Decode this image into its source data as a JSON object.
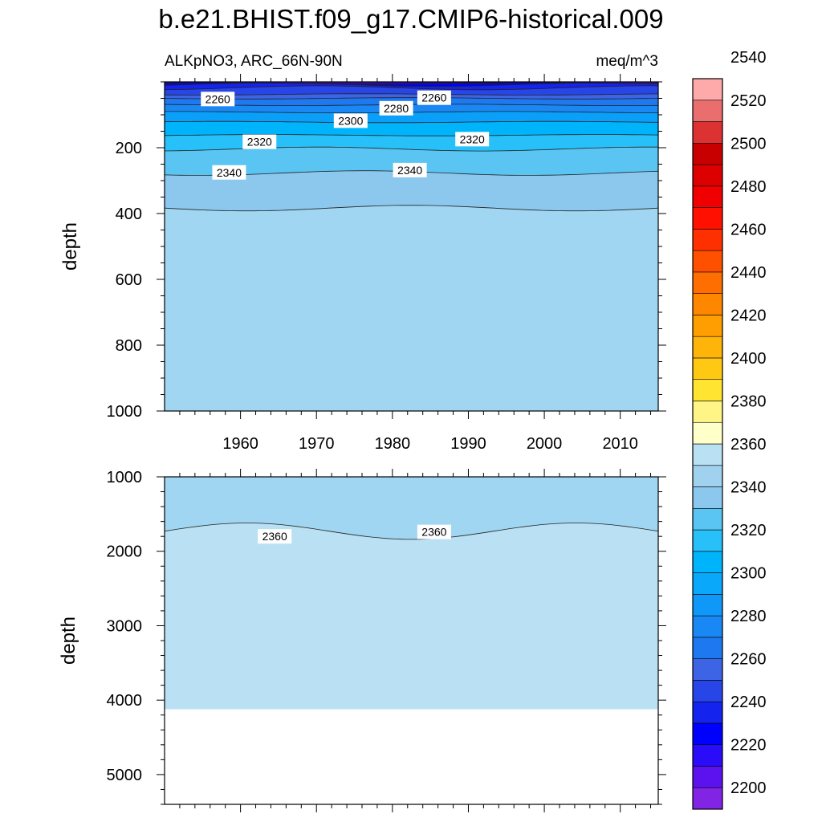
{
  "title": "b.e21.BHIST.f09_g17.CMIP6-historical.009",
  "subtitle_left": "ALKpNO3, ARC_66N-90N",
  "subtitle_right": "meq/m^3",
  "chart_data": [
    {
      "type": "heatmap",
      "name": "upper-panel",
      "xlabel": "",
      "ylabel": "depth",
      "xlim": [
        1950,
        2015
      ],
      "ylim": [
        1000,
        0
      ],
      "y_reversed": true,
      "x_ticks": [
        1960,
        1970,
        1980,
        1990,
        2000,
        2010
      ],
      "y_ticks": [
        200,
        400,
        600,
        800,
        1000
      ],
      "background_color": "#a0d6f2",
      "bands": [
        {
          "level": 2220,
          "color": "#5c12ef",
          "x": [
            1950,
            2015
          ],
          "depth": [
            2,
            4
          ]
        },
        {
          "level": 2230,
          "color": "#1e00f5",
          "x": [
            1950,
            2015
          ],
          "depth": [
            2,
            8
          ]
        },
        {
          "level": 2240,
          "color": "#0000ff",
          "x": [
            1950,
            2015
          ],
          "depth": [
            3,
            14
          ]
        },
        {
          "level": 2250,
          "color": "#1424ee",
          "x": [
            1950,
            2015
          ],
          "depth": [
            12,
            24
          ]
        },
        {
          "level": 2260,
          "color": "#2846e8",
          "x": [
            1950,
            2015
          ],
          "depth": [
            36,
            40
          ]
        },
        {
          "level": 2270,
          "color": "#3c64e4",
          "x": [
            1950,
            2015
          ],
          "depth": [
            48,
            52
          ]
        },
        {
          "level": 2280,
          "color": "#1e78f0",
          "x": [
            1950,
            2015
          ],
          "depth": [
            68,
            72
          ]
        },
        {
          "level": 2290,
          "color": "#1a88f4",
          "x": [
            1950,
            2015
          ],
          "depth": [
            90,
            94
          ]
        },
        {
          "level": 2300,
          "color": "#0aa0fa",
          "x": [
            1950,
            2015
          ],
          "depth": [
            120,
            124
          ]
        },
        {
          "level": 2310,
          "color": "#00b4fb",
          "x": [
            1950,
            2015
          ],
          "depth": [
            160,
            164
          ]
        },
        {
          "level": 2320,
          "color": "#28c0f8",
          "x": [
            1950,
            2015
          ],
          "depth": [
            198,
            210
          ]
        },
        {
          "level": 2330,
          "color": "#5ac5f3",
          "x": [
            1950,
            2015
          ],
          "depth": [
            270,
            284
          ]
        },
        {
          "level": 2340,
          "color": "#8cc8ee",
          "x": [
            1950,
            2015
          ],
          "depth": [
            375,
            392
          ]
        }
      ],
      "contour_labels": [
        {
          "text": "2260",
          "x": 1957,
          "depth": 52
        },
        {
          "text": "2260",
          "x": 1985.5,
          "depth": 48
        },
        {
          "text": "2280",
          "x": 1980.5,
          "depth": 80
        },
        {
          "text": "2300",
          "x": 1974.5,
          "depth": 118
        },
        {
          "text": "2320",
          "x": 1962.5,
          "depth": 182
        },
        {
          "text": "2320",
          "x": 1990.5,
          "depth": 174
        },
        {
          "text": "2340",
          "x": 1958.5,
          "depth": 275
        },
        {
          "text": "2340",
          "x": 1982.3,
          "depth": 268
        }
      ]
    },
    {
      "type": "heatmap",
      "name": "lower-panel",
      "xlabel": "",
      "ylabel": "depth",
      "xlim": [
        1950,
        2015
      ],
      "ylim": [
        5400,
        1000
      ],
      "y_reversed": true,
      "x_ticks": [
        1960,
        1970,
        1980,
        1990,
        2000,
        2010
      ],
      "y_ticks": [
        1000,
        2000,
        3000,
        4000,
        5000
      ],
      "background_color": "#a0d6f2",
      "bands": [
        {
          "level": 2360,
          "color": "#b9e1f3",
          "x": [
            1950,
            2015
          ],
          "depth": [
            1620,
            1840
          ]
        }
      ],
      "bottom_depth": 4120,
      "contour_labels": [
        {
          "text": "2360",
          "x": 1964.5,
          "depth": 1800
        },
        {
          "text": "2360",
          "x": 1985.5,
          "depth": 1740
        }
      ]
    }
  ],
  "colorbar": {
    "labels": [
      "2200",
      "2220",
      "2240",
      "2260",
      "2280",
      "2300",
      "2320",
      "2340",
      "2360",
      "2380",
      "2400",
      "2420",
      "2440",
      "2460",
      "2480",
      "2500",
      "2520",
      "2540"
    ],
    "colors": [
      "#8224e3",
      "#5c12ef",
      "#2a0cf8",
      "#0000ff",
      "#1424ee",
      "#2846e8",
      "#3c64e4",
      "#1e78f0",
      "#1a88f4",
      "#1098f8",
      "#0aa8fa",
      "#00b4fb",
      "#28c0f8",
      "#5ac5f3",
      "#8cc8ee",
      "#a0d2f0",
      "#b9e1f3",
      "#ffffca",
      "#fff587",
      "#ffe432",
      "#ffc813",
      "#ffb40a",
      "#ff9e00",
      "#ff8700",
      "#ff6e00",
      "#ff5000",
      "#ff3000",
      "#ff1000",
      "#f00000",
      "#dc0000",
      "#c80000",
      "#dc3232",
      "#eb6e6e",
      "#ffaaaa"
    ]
  }
}
